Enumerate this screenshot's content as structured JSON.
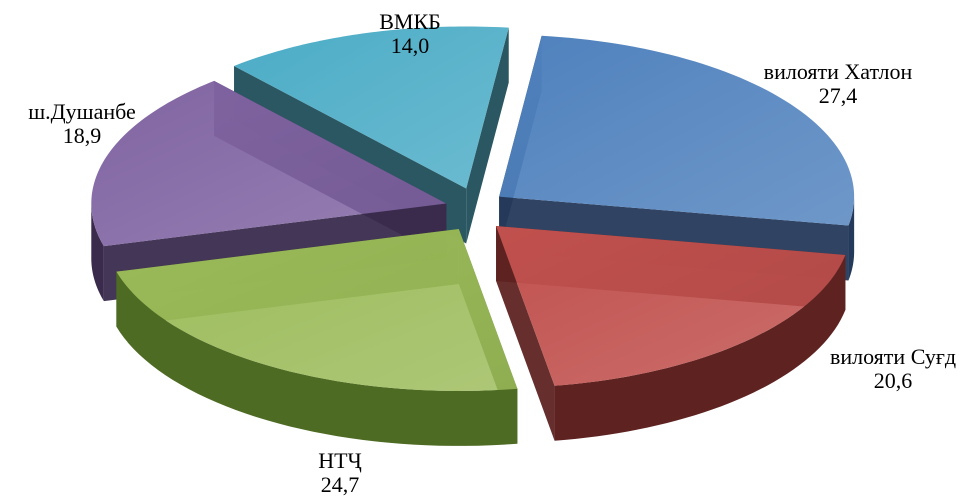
{
  "chart_data": {
    "type": "pie",
    "title": "",
    "style": "3d-exploded",
    "slices": [
      {
        "label": "вилояти Хатлон",
        "value": "27,4",
        "num": 27.4,
        "color": "#4F81BD",
        "side": "#25395A"
      },
      {
        "label": "вилояти Суғд",
        "value": "20,6",
        "num": 20.6,
        "color": "#C0504D",
        "side": "#5E2321"
      },
      {
        "label": "НТҶ",
        "value": "24,7",
        "num": 24.7,
        "color": "#9BBB59",
        "side": "#4E6B24"
      },
      {
        "label": "ш.Душанбе",
        "value": "18,9",
        "num": 18.9,
        "color": "#8064A2",
        "side": "#3A2B4D"
      },
      {
        "label": "ВМКБ",
        "value": "14,0",
        "num": 14.0,
        "color": "#4BACC6",
        "side": "#1F4E5A"
      }
    ]
  }
}
